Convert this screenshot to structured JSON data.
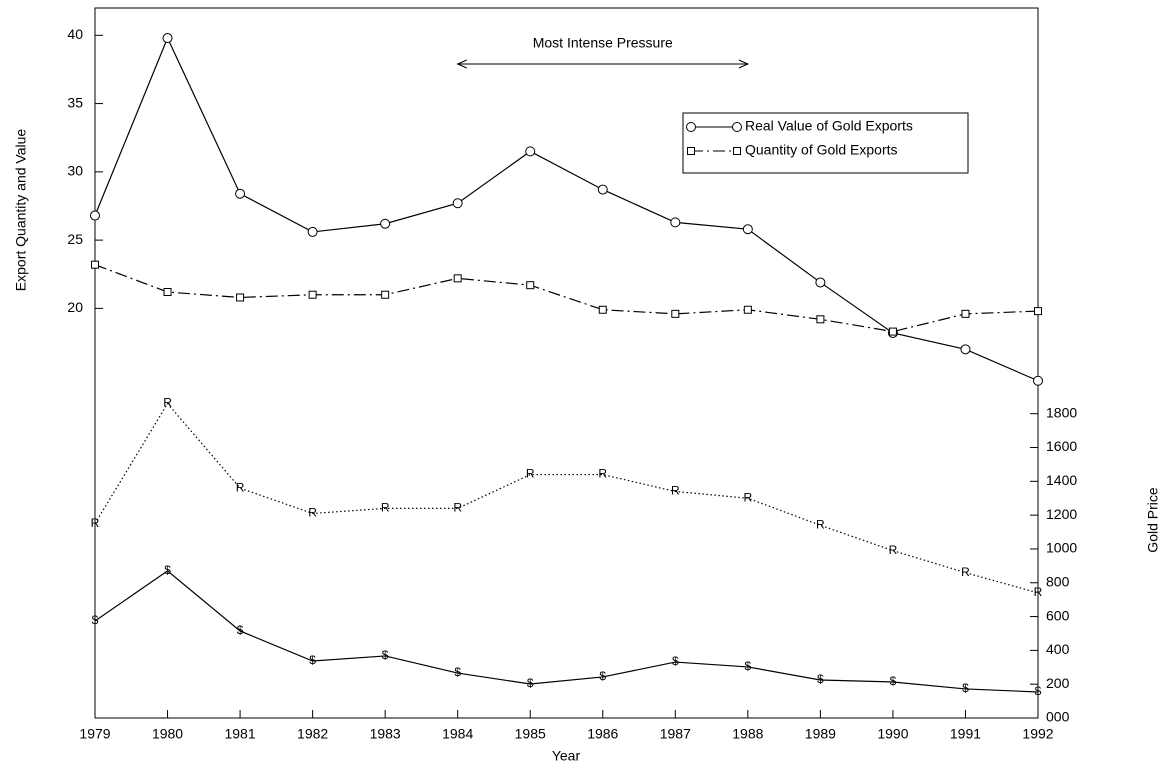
{
  "chart_data": {
    "type": "line",
    "xlabel": "Year",
    "ylabel": "Export Quantity and Value",
    "y2label": "Gold Price",
    "x": [
      1979,
      1980,
      1981,
      1982,
      1983,
      1984,
      1985,
      1986,
      1987,
      1988,
      1989,
      1990,
      1991,
      1992
    ],
    "xlim": [
      1979,
      1992
    ],
    "xticks": [
      1979,
      1980,
      1981,
      1982,
      1983,
      1984,
      1985,
      1986,
      1987,
      1988,
      1989,
      1990,
      1991,
      1992
    ],
    "ylim": [
      -10,
      42
    ],
    "yticks": [
      20,
      25,
      30,
      35,
      40
    ],
    "y2lim": [
      0,
      4200
    ],
    "y2ticks": [
      {
        "value": 0,
        "label": "000"
      },
      200,
      400,
      600,
      800,
      1000,
      1200,
      1400,
      1600,
      1800
    ],
    "legend": "upper right",
    "grid": false,
    "annotation": {
      "text": "Most Intense Pressure",
      "x_start": 1984,
      "x_end": 1988
    },
    "series": [
      {
        "name": "Real Value of Gold Exports",
        "color": "#000000",
        "marker": "circle",
        "dash": "solid",
        "values": [
          26.8,
          39.8,
          28.4,
          25.6,
          26.2,
          27.7,
          31.5,
          28.7,
          26.3,
          25.8,
          21.9,
          18.2,
          17.0,
          14.7
        ]
      },
      {
        "name": "Quantity of Gold Exports",
        "color": "#000000",
        "marker": "square",
        "dash": "dashdot",
        "values": [
          23.2,
          21.2,
          20.8,
          21.0,
          21.0,
          22.2,
          21.7,
          19.9,
          19.6,
          19.9,
          19.2,
          18.3,
          19.6,
          19.8
        ]
      },
      {
        "color": "#000000",
        "marker": "R",
        "dash": "dotted",
        "axis": "y2",
        "values": [
          1150,
          1860,
          1360,
          1210,
          1240,
          1240,
          1440,
          1440,
          1340,
          1300,
          1140,
          990,
          860,
          740
        ]
      },
      {
        "color": "#000000",
        "marker": "$",
        "dash": "solid",
        "axis": "y2",
        "values": [
          574,
          870,
          515,
          337,
          367,
          266,
          201,
          243,
          331,
          302,
          225,
          213,
          172,
          154
        ]
      }
    ]
  }
}
